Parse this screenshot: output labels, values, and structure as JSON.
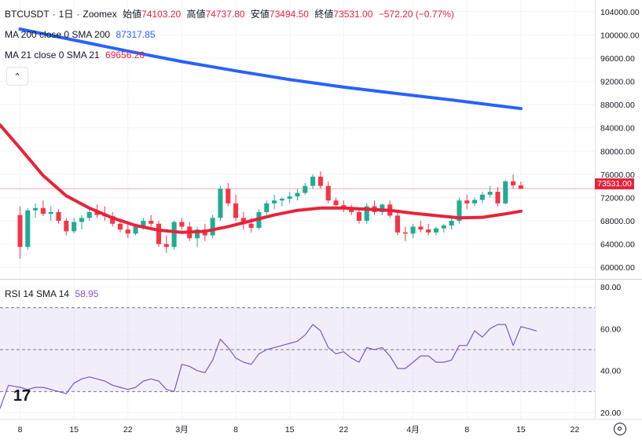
{
  "header": {
    "symbol": "BTCUSDT",
    "dot": "·",
    "interval": "1日",
    "exchange": "Zoomex",
    "open_label": "始値",
    "open_value": "74103.20",
    "high_label": "高値",
    "high_value": "74737.80",
    "low_label": "安値",
    "low_value": "73494.50",
    "close_label": "終値",
    "close_value": "73531.00",
    "change": "−572.20 (−0.77%)"
  },
  "ma200": {
    "label": "MA 200 close 0 SMA 200",
    "value": "87317.85",
    "color": "#2962ff"
  },
  "ma21": {
    "label": "MA 21 close 0 SMA 21",
    "value": "69656.20",
    "color": "#e5243b"
  },
  "rsi": {
    "label": "RSI 14 SMA 14",
    "value": "58.95",
    "color": "#7e57c2"
  },
  "current_price_tag": "73531.00",
  "chart_data": {
    "type": "candlestick",
    "title": "BTCUSDT · 1日 · Zoomex",
    "price_ticks": [
      "104000.00",
      "100000.00",
      "96000.00",
      "92000.00",
      "88000.00",
      "84000.00",
      "80000.00",
      "76000.00",
      "72000.00",
      "68000.00",
      "64000.00",
      "60000.00"
    ],
    "price_tick_values": [
      104000,
      100000,
      96000,
      92000,
      88000,
      84000,
      80000,
      76000,
      72000,
      68000,
      64000,
      60000
    ],
    "price_range": [
      58000,
      106000
    ],
    "rsi_ticks": [
      "80.00",
      "60.00",
      "40.00",
      "20.00"
    ],
    "rsi_tick_values": [
      80,
      60,
      40,
      20
    ],
    "rsi_range": [
      17,
      83
    ],
    "rsi_band": [
      30,
      70
    ],
    "rsi_mid": 50,
    "x_ticks": [
      {
        "label": "8",
        "day": 0
      },
      {
        "label": "15",
        "day": 7
      },
      {
        "label": "22",
        "day": 14
      },
      {
        "label": "3月",
        "day": 21
      },
      {
        "label": "8",
        "day": 28
      },
      {
        "label": "15",
        "day": 35
      },
      {
        "label": "22",
        "day": 42
      },
      {
        "label": "4月",
        "day": 51
      },
      {
        "label": "8",
        "day": 58
      },
      {
        "label": "15",
        "day": 65
      },
      {
        "label": "22",
        "day": 72
      }
    ],
    "x_day_range": [
      -2.6,
      74.6
    ],
    "candles": [
      [
        0,
        69000,
        70500,
        61500,
        63500
      ],
      [
        1,
        63500,
        70200,
        63000,
        69800
      ],
      [
        2,
        69800,
        71000,
        68500,
        70200
      ],
      [
        3,
        70200,
        71500,
        68800,
        69200
      ],
      [
        4,
        69200,
        70500,
        68000,
        69500
      ],
      [
        5,
        69500,
        70000,
        67500,
        68000
      ],
      [
        6,
        68000,
        68500,
        65500,
        66200
      ],
      [
        7,
        66200,
        68500,
        65800,
        67800
      ],
      [
        8,
        67800,
        69000,
        66500,
        68500
      ],
      [
        9,
        68500,
        70000,
        68000,
        69500
      ],
      [
        10,
        69500,
        70800,
        68500,
        69000
      ],
      [
        11,
        69000,
        70500,
        68000,
        68800
      ],
      [
        12,
        68800,
        69500,
        67000,
        67500
      ],
      [
        13,
        67500,
        68000,
        66000,
        66500
      ],
      [
        14,
        66500,
        67500,
        65000,
        65800
      ],
      [
        15,
        65800,
        67500,
        65500,
        67000
      ],
      [
        16,
        67000,
        68500,
        66500,
        68000
      ],
      [
        17,
        68000,
        69000,
        67000,
        67500
      ],
      [
        18,
        67500,
        68000,
        63500,
        64000
      ],
      [
        19,
        64000,
        65500,
        62500,
        63500
      ],
      [
        20,
        63500,
        68000,
        63000,
        67800
      ],
      [
        21,
        67800,
        68500,
        66500,
        67000
      ],
      [
        22,
        67000,
        67800,
        64500,
        65000
      ],
      [
        23,
        65000,
        67000,
        63500,
        66500
      ],
      [
        24,
        66500,
        67500,
        64500,
        65500
      ],
      [
        25,
        65500,
        69000,
        65000,
        68500
      ],
      [
        26,
        68500,
        74000,
        68000,
        73500
      ],
      [
        27,
        73500,
        74500,
        70500,
        71000
      ],
      [
        28,
        71000,
        72500,
        68000,
        68500
      ],
      [
        29,
        68500,
        69500,
        66500,
        67500
      ],
      [
        30,
        67500,
        68500,
        66000,
        66800
      ],
      [
        31,
        66800,
        70000,
        66500,
        69500
      ],
      [
        32,
        69500,
        71500,
        69000,
        71000
      ],
      [
        33,
        71000,
        72500,
        70000,
        71500
      ],
      [
        34,
        71500,
        72000,
        70500,
        71800
      ],
      [
        35,
        71800,
        73000,
        71000,
        72200
      ],
      [
        36,
        72200,
        73500,
        71500,
        72800
      ],
      [
        37,
        72800,
        74500,
        72500,
        74000
      ],
      [
        38,
        74000,
        76000,
        73500,
        75600
      ],
      [
        39,
        75600,
        76500,
        73500,
        74000
      ],
      [
        40,
        74000,
        74800,
        71000,
        71500
      ],
      [
        41,
        71500,
        72000,
        70500,
        70700
      ],
      [
        42,
        70700,
        71500,
        69500,
        70000
      ],
      [
        43,
        70000,
        70800,
        69000,
        69500
      ],
      [
        44,
        69500,
        70000,
        67500,
        68000
      ],
      [
        45,
        68000,
        71000,
        67500,
        70500
      ],
      [
        46,
        70500,
        71500,
        69000,
        69500
      ],
      [
        47,
        69500,
        71000,
        69000,
        70800
      ],
      [
        48,
        70800,
        71500,
        68500,
        68900
      ],
      [
        49,
        68900,
        69500,
        65500,
        66000
      ],
      [
        50,
        66000,
        67000,
        64500,
        65800
      ],
      [
        51,
        65800,
        67500,
        65000,
        67000
      ],
      [
        52,
        67000,
        68000,
        66000,
        66500
      ],
      [
        53,
        66500,
        67500,
        65500,
        66000
      ],
      [
        54,
        66000,
        67000,
        65500,
        66700
      ],
      [
        55,
        66700,
        67500,
        66000,
        67200
      ],
      [
        56,
        67200,
        68500,
        66500,
        68000
      ],
      [
        57,
        68000,
        72000,
        67500,
        71500
      ],
      [
        58,
        71500,
        72500,
        70000,
        71000
      ],
      [
        59,
        71000,
        72000,
        70500,
        71600
      ],
      [
        60,
        71600,
        73000,
        71000,
        72500
      ],
      [
        61,
        72500,
        74000,
        72000,
        73000
      ],
      [
        62,
        73000,
        73800,
        70500,
        71000
      ],
      [
        63,
        71000,
        75000,
        70800,
        74800
      ],
      [
        64,
        74800,
        76000,
        73500,
        74100
      ],
      [
        65,
        74103.2,
        74737.8,
        73494.5,
        73531.0
      ]
    ],
    "ma200": [
      [
        0,
        101000
      ],
      [
        7,
        99100
      ],
      [
        14,
        97200
      ],
      [
        21,
        95400
      ],
      [
        28,
        93800
      ],
      [
        35,
        92300
      ],
      [
        42,
        91000
      ],
      [
        49,
        89900
      ],
      [
        56,
        88800
      ],
      [
        65,
        87317.85
      ]
    ],
    "ma21": [
      [
        -2.6,
        84500
      ],
      [
        0,
        80500
      ],
      [
        3,
        75800
      ],
      [
        6,
        72300
      ],
      [
        9,
        70200
      ],
      [
        12,
        68500
      ],
      [
        15,
        67200
      ],
      [
        18,
        66400
      ],
      [
        21,
        66000
      ],
      [
        24,
        66200
      ],
      [
        27,
        67000
      ],
      [
        30,
        68000
      ],
      [
        33,
        69000
      ],
      [
        36,
        69800
      ],
      [
        39,
        70200
      ],
      [
        42,
        70200
      ],
      [
        45,
        70000
      ],
      [
        48,
        69800
      ],
      [
        51,
        69300
      ],
      [
        54,
        68900
      ],
      [
        57,
        68500
      ],
      [
        60,
        68600
      ],
      [
        63,
        69200
      ],
      [
        65,
        69656.2
      ]
    ],
    "rsi": [
      [
        -2.6,
        22
      ],
      [
        -1.5,
        33
      ],
      [
        0,
        32
      ],
      [
        1,
        31
      ],
      [
        2,
        32
      ],
      [
        3,
        32
      ],
      [
        4,
        31
      ],
      [
        5,
        30
      ],
      [
        6,
        29
      ],
      [
        7,
        34
      ],
      [
        8,
        36
      ],
      [
        9,
        37
      ],
      [
        10,
        36
      ],
      [
        11,
        35
      ],
      [
        12,
        33
      ],
      [
        13,
        32
      ],
      [
        14,
        31
      ],
      [
        15,
        32
      ],
      [
        16,
        35
      ],
      [
        17,
        36
      ],
      [
        18,
        35
      ],
      [
        19,
        31
      ],
      [
        20,
        30
      ],
      [
        21,
        43
      ],
      [
        22,
        42
      ],
      [
        23,
        40
      ],
      [
        24,
        39
      ],
      [
        25,
        45
      ],
      [
        26,
        55
      ],
      [
        27,
        51
      ],
      [
        28,
        46
      ],
      [
        29,
        44
      ],
      [
        30,
        43
      ],
      [
        31,
        48
      ],
      [
        32,
        50
      ],
      [
        33,
        51
      ],
      [
        34,
        52
      ],
      [
        35,
        53
      ],
      [
        36,
        54
      ],
      [
        37,
        57
      ],
      [
        38,
        62
      ],
      [
        39,
        59
      ],
      [
        40,
        51
      ],
      [
        41,
        48
      ],
      [
        42,
        49
      ],
      [
        43,
        46
      ],
      [
        44,
        44
      ],
      [
        45,
        51
      ],
      [
        46,
        50
      ],
      [
        47,
        51
      ],
      [
        48,
        47
      ],
      [
        49,
        41
      ],
      [
        50,
        41
      ],
      [
        51,
        44
      ],
      [
        52,
        47
      ],
      [
        53,
        47
      ],
      [
        54,
        44
      ],
      [
        55,
        44
      ],
      [
        56,
        45
      ],
      [
        57,
        52
      ],
      [
        58,
        52
      ],
      [
        59,
        59
      ],
      [
        60,
        56
      ],
      [
        61,
        60
      ],
      [
        62,
        62
      ],
      [
        63,
        62
      ],
      [
        64,
        52
      ],
      [
        65,
        61
      ],
      [
        66,
        60
      ],
      [
        67,
        58.95
      ]
    ]
  }
}
